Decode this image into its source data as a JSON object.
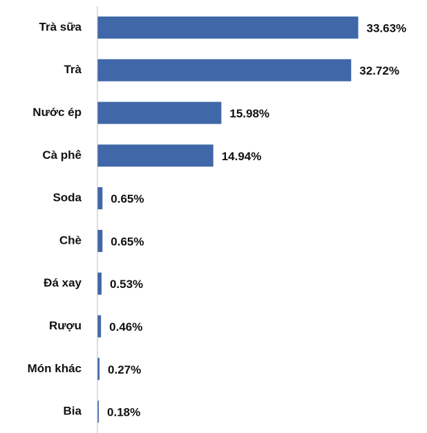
{
  "chart_data": {
    "type": "bar",
    "orientation": "horizontal",
    "categories": [
      "Trà sữa",
      "Trà",
      "Nước ép",
      "Cà phê",
      "Soda",
      "Chè",
      "Đá xay",
      "Rượu",
      "Món khác",
      "Bia"
    ],
    "values": [
      33.63,
      32.72,
      15.98,
      14.94,
      0.65,
      0.65,
      0.53,
      0.46,
      0.27,
      0.18
    ],
    "value_labels": [
      "33.63%",
      "32.72%",
      "15.98%",
      "14.94%",
      "0.65%",
      "0.65%",
      "0.53%",
      "0.46%",
      "0.27%",
      "0.18%"
    ],
    "color": "#4067a8",
    "xlim": [
      0,
      40
    ]
  }
}
